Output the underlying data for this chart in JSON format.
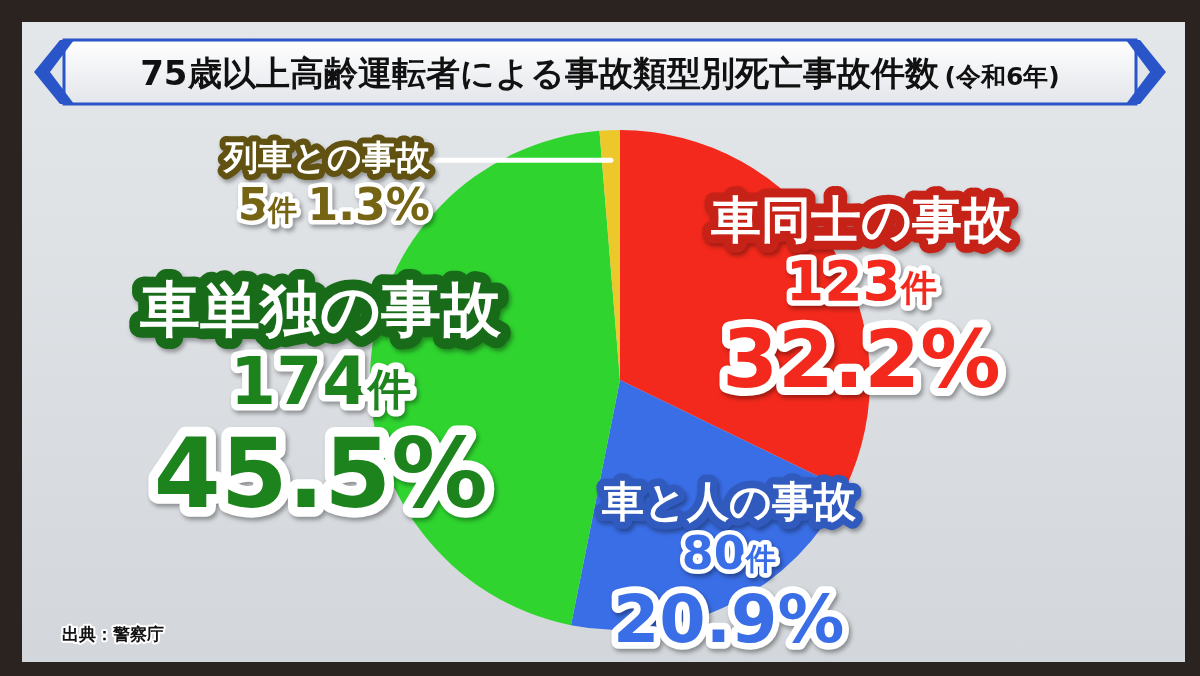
{
  "chart_data": {
    "type": "pie",
    "title": "75歳以上高齢運転者による事故類型別死亡事故件数",
    "subtitle": "(令和6年)",
    "categories": [
      "車同士の事故",
      "車と人の事故",
      "車単独の事故",
      "列車との事故"
    ],
    "values": [
      123,
      80,
      174,
      5
    ],
    "colors": [
      "#f2291c",
      "#3a6ee6",
      "#2fd42f",
      "#ecc82a"
    ],
    "value_labels": [
      "123件\n32.2%",
      "80件\n20.9%",
      "174件\n45.5%",
      "5件 1.3%"
    ],
    "annotations": [
      "出典：警察庁"
    ]
  }
}
